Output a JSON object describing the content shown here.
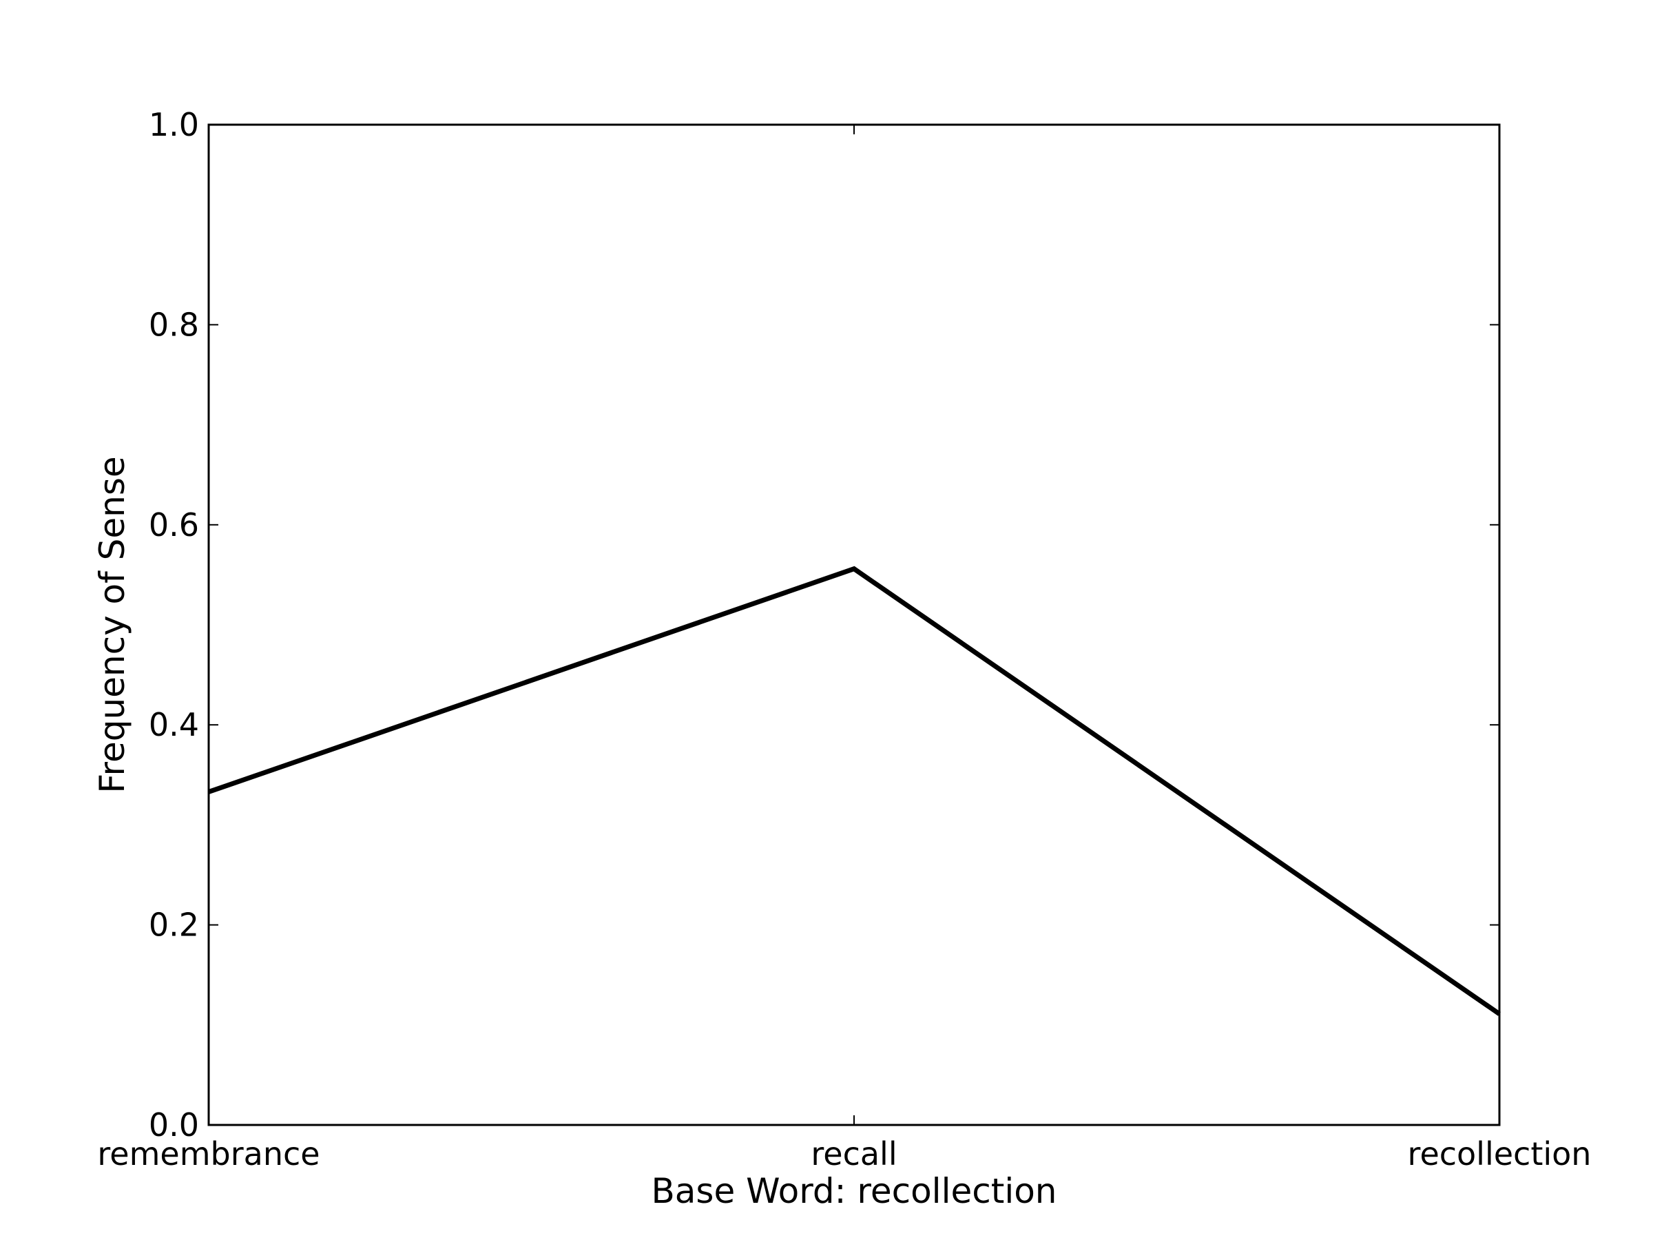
{
  "chart_data": {
    "type": "line",
    "categories": [
      "remembrance",
      "recall",
      "recollection"
    ],
    "series": [
      {
        "values": [
          0.333,
          0.556,
          0.111
        ],
        "color": "#000000"
      }
    ],
    "xlabel": "Base Word: recollection",
    "ylabel": "Frequency of Sense",
    "ylim": [
      0.0,
      1.0
    ],
    "yticks": [
      "0.0",
      "0.2",
      "0.4",
      "0.6",
      "0.8",
      "1.0"
    ],
    "grid": false
  }
}
